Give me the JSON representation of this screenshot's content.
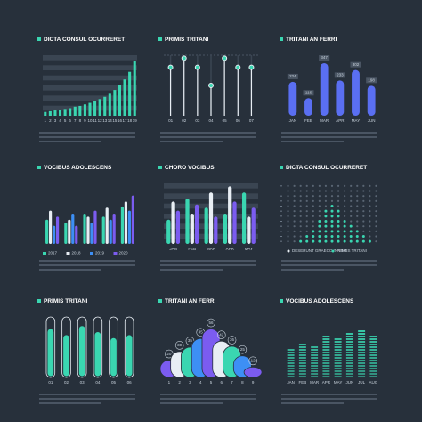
{
  "chart_data": [
    {
      "type": "bar",
      "title": "DICTA CONSUL OCURRERET",
      "categories": [
        "1",
        "2",
        "3",
        "4",
        "5",
        "6",
        "7",
        "8",
        "9",
        "10",
        "11",
        "12",
        "13",
        "14",
        "15",
        "16",
        "17",
        "18",
        "19"
      ],
      "values": [
        5,
        6,
        7,
        8,
        9,
        10,
        12,
        13,
        15,
        17,
        19,
        22,
        25,
        29,
        34,
        40,
        48,
        58,
        72
      ],
      "ylim": [
        0,
        80
      ],
      "color": "#3ad6b1",
      "grid": true
    },
    {
      "type": "lollipop",
      "title": "PRIMIS TRITANI",
      "categories": [
        "01",
        "02",
        "03",
        "04",
        "05",
        "06",
        "07"
      ],
      "values": [
        80,
        95,
        80,
        50,
        95,
        80,
        80
      ],
      "ylim": [
        0,
        100
      ],
      "color": "#3ad6b1"
    },
    {
      "type": "bar",
      "title": "TRITANI AN FERRI",
      "categories": [
        "JAN",
        "FEB",
        "MAR",
        "APR",
        "MAY",
        "JUN"
      ],
      "values": [
        224,
        116,
        347,
        233,
        302,
        198
      ],
      "ylim": [
        0,
        400
      ],
      "color": "#5a6ff2",
      "show_values": true
    },
    {
      "type": "grouped_bar",
      "title": "VOCIBUS ADOLESCENS",
      "categories": [
        null,
        null,
        null,
        null,
        null
      ],
      "series": [
        {
          "name": "2017",
          "color": "#3ad6b1",
          "values": [
            40,
            35,
            50,
            45,
            62
          ]
        },
        {
          "name": "2018",
          "color": "#e8eef4",
          "values": [
            55,
            40,
            45,
            60,
            70
          ]
        },
        {
          "name": "2019",
          "color": "#3d8ff5",
          "values": [
            30,
            50,
            35,
            40,
            55
          ]
        },
        {
          "name": "2020",
          "color": "#7b5cf0",
          "values": [
            45,
            30,
            55,
            50,
            80
          ]
        }
      ],
      "ylim": [
        0,
        100
      ]
    },
    {
      "type": "grouped_bar",
      "title": "CHORO VOCIBUS",
      "categories": [
        "JAN",
        "FEB",
        "MAR",
        "APR",
        "MAY"
      ],
      "series": [
        {
          "color": "#3ad6b1",
          "values": [
            40,
            75,
            60,
            50,
            85
          ]
        },
        {
          "color": "#e8eef4",
          "values": [
            70,
            50,
            85,
            95,
            45
          ]
        },
        {
          "color": "#7b5cf0",
          "values": [
            55,
            65,
            45,
            70,
            60
          ]
        }
      ],
      "ylim": [
        0,
        100
      ],
      "grid": true
    },
    {
      "type": "dots",
      "title": "DICTA CONSUL OCURRERET",
      "values": [
        0,
        0,
        1,
        2,
        3,
        5,
        7,
        8,
        7,
        5,
        4,
        3,
        2,
        1,
        0
      ],
      "ylim": [
        0,
        12
      ],
      "color": "#3ad6b1",
      "legend": [
        {
          "name": "DESERUNT GRAECO INIUNE",
          "color": "#e8eef4"
        },
        {
          "name": "PRIMIS TRITANI",
          "color": "#3ad6b1"
        }
      ]
    },
    {
      "type": "progress",
      "title": "PRIMIS TRITANI",
      "categories": [
        "01",
        "02",
        "03",
        "04",
        "05",
        "06"
      ],
      "values": [
        80,
        70,
        85,
        75,
        65,
        70
      ],
      "ylim": [
        0,
        100
      ],
      "color": "#3ad6b1"
    },
    {
      "type": "bubble_columns",
      "title": "TRITANI AN FERRI",
      "categories": [
        "1",
        "2",
        "3",
        "4",
        "5",
        "6",
        "7",
        "8",
        "9"
      ],
      "values": [
        20,
        30,
        35,
        45,
        56,
        42,
        36,
        25,
        12
      ],
      "ylim": [
        0,
        70
      ],
      "colors": [
        "#7b5cf0",
        "#e8eef4",
        "#3ad6b1",
        "#3d8ff5"
      ]
    },
    {
      "type": "striped_bar",
      "title": "VOCIBUS ADOLESCENS",
      "categories": [
        "JAN",
        "FEB",
        "MAR",
        "APR",
        "MAY",
        "JUN",
        "JUL",
        "AUG"
      ],
      "values": [
        50,
        60,
        55,
        70,
        65,
        75,
        80,
        70
      ],
      "ylim": [
        0,
        100
      ],
      "color": "#3ad6b1"
    }
  ]
}
